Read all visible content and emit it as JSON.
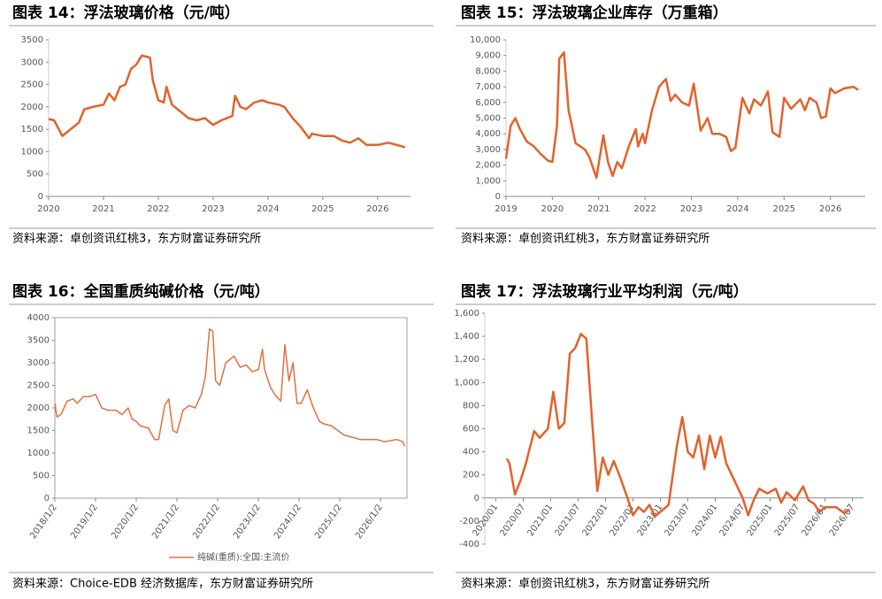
{
  "chart_data": [
    {
      "type": "line",
      "title": "图表 14：浮法玻璃价格（元/吨）",
      "source": "资料来源：卓创资讯红桃3，东方财富证券研究所",
      "color": "#e2622c",
      "x": [
        2020.0,
        2020.1,
        2020.25,
        2020.4,
        2020.55,
        2020.65,
        2020.8,
        2021.0,
        2021.1,
        2021.2,
        2021.3,
        2021.4,
        2021.5,
        2021.6,
        2021.7,
        2021.85,
        2021.9,
        2022.0,
        2022.1,
        2022.15,
        2022.25,
        2022.4,
        2022.55,
        2022.7,
        2022.85,
        2023.0,
        2023.15,
        2023.35,
        2023.4,
        2023.5,
        2023.6,
        2023.75,
        2023.9,
        2024.0,
        2024.2,
        2024.3,
        2024.45,
        2024.6,
        2024.75,
        2024.8,
        2025.0,
        2025.2,
        2025.35,
        2025.5,
        2025.65,
        2025.8,
        2026.0,
        2026.2,
        2026.35,
        2026.5
      ],
      "values": [
        1730,
        1700,
        1350,
        1500,
        1650,
        1950,
        2000,
        2050,
        2300,
        2150,
        2450,
        2500,
        2850,
        2950,
        3150,
        3100,
        2600,
        2150,
        2100,
        2450,
        2050,
        1900,
        1750,
        1700,
        1750,
        1600,
        1700,
        1800,
        2250,
        2000,
        1950,
        2100,
        2150,
        2100,
        2050,
        2000,
        1750,
        1550,
        1300,
        1400,
        1350,
        1350,
        1250,
        1200,
        1300,
        1150,
        1150,
        1200,
        1150,
        1100
      ],
      "xlim": [
        2020,
        2026.6
      ],
      "xticks": [
        2020,
        2021,
        2022,
        2023,
        2024,
        2025,
        2026
      ],
      "ylim": [
        0,
        3500
      ],
      "yticks": [
        0,
        500,
        1000,
        1500,
        2000,
        2500,
        3000,
        3500
      ]
    },
    {
      "type": "line",
      "title": "图表 15：浮法玻璃企业库存（万重箱）",
      "source": "资料来源：卓创资讯红桃3，东方财富证券研究所",
      "color": "#e2622c",
      "x": [
        2019.0,
        2019.1,
        2019.2,
        2019.3,
        2019.45,
        2019.6,
        2019.75,
        2019.9,
        2020.0,
        2020.1,
        2020.15,
        2020.25,
        2020.35,
        2020.5,
        2020.6,
        2020.7,
        2020.8,
        2020.95,
        2021.1,
        2021.2,
        2021.3,
        2021.4,
        2021.5,
        2021.65,
        2021.8,
        2021.85,
        2021.95,
        2022.0,
        2022.15,
        2022.3,
        2022.45,
        2022.55,
        2022.65,
        2022.8,
        2022.95,
        2023.05,
        2023.2,
        2023.35,
        2023.45,
        2023.6,
        2023.75,
        2023.85,
        2023.95,
        2024.1,
        2024.25,
        2024.35,
        2024.5,
        2024.65,
        2024.75,
        2024.9,
        2025.0,
        2025.15,
        2025.35,
        2025.45,
        2025.55,
        2025.7,
        2025.8,
        2025.9,
        2026.0,
        2026.1,
        2026.3,
        2026.5,
        2026.6
      ],
      "values": [
        2400,
        4500,
        5000,
        4300,
        3500,
        3200,
        2700,
        2300,
        2200,
        4500,
        8800,
        9200,
        5500,
        3400,
        3200,
        3000,
        2500,
        1200,
        3900,
        2200,
        1300,
        2200,
        1800,
        3200,
        4300,
        3200,
        4000,
        3400,
        5500,
        7000,
        7500,
        6100,
        6500,
        6000,
        5800,
        7200,
        4200,
        5000,
        4000,
        4000,
        3800,
        2900,
        3100,
        6300,
        5300,
        6200,
        5800,
        6700,
        4100,
        3800,
        6300,
        5600,
        6200,
        5500,
        6300,
        6000,
        5000,
        5100,
        6900,
        6600,
        6900,
        7000,
        6800
      ],
      "xlim": [
        2019,
        2026.75
      ],
      "xticks": [
        2019,
        2020,
        2021,
        2022,
        2023,
        2024,
        2025,
        2026
      ],
      "ylim": [
        0,
        10000
      ],
      "yticks": [
        0,
        {
          "value": 1000,
          "label": "1,000"
        },
        {
          "value": 2000,
          "label": "2,000"
        },
        {
          "value": 3000,
          "label": "3,000"
        },
        {
          "value": 4000,
          "label": "4,000"
        },
        {
          "value": 5000,
          "label": "5,000"
        },
        {
          "value": 6000,
          "label": "6,000"
        },
        {
          "value": 7000,
          "label": "7,000"
        },
        {
          "value": 8000,
          "label": "8,000"
        },
        {
          "value": 9000,
          "label": "9,000"
        },
        {
          "value": 10000,
          "label": "10,000"
        }
      ]
    },
    {
      "type": "line",
      "title": "图表 16：全国重质纯碱价格（元/吨）",
      "source": "资料来源：Choice-EDB 经济数据库，东方财富证券研究所",
      "x": [
        2018.0,
        2018.05,
        2018.15,
        2018.3,
        2018.45,
        2018.55,
        2018.7,
        2018.85,
        2019.0,
        2019.15,
        2019.3,
        2019.5,
        2019.65,
        2019.8,
        2019.9,
        2020.0,
        2020.1,
        2020.3,
        2020.45,
        2020.55,
        2020.7,
        2020.8,
        2020.9,
        2021.0,
        2021.15,
        2021.3,
        2021.45,
        2021.6,
        2021.7,
        2021.8,
        2021.88,
        2021.95,
        2022.05,
        2022.2,
        2022.4,
        2022.55,
        2022.7,
        2022.85,
        2023.0,
        2023.1,
        2023.15,
        2023.3,
        2023.4,
        2023.55,
        2023.65,
        2023.75,
        2023.85,
        2023.95,
        2024.05,
        2024.2,
        2024.35,
        2024.5,
        2024.6,
        2024.8,
        2024.95,
        2025.1,
        2025.3,
        2025.5,
        2025.7,
        2025.9,
        2026.1,
        2026.4,
        2026.55,
        2026.6
      ],
      "series": [
        {
          "name": "纯碱(重质):全国:主流价",
          "color": "#e0703f",
          "values": [
            2100,
            1800,
            1850,
            2150,
            2200,
            2100,
            2250,
            2250,
            2300,
            2000,
            1950,
            1950,
            1850,
            2000,
            1750,
            1700,
            1600,
            1550,
            1300,
            1300,
            2050,
            2200,
            1500,
            1450,
            1950,
            2050,
            2000,
            2300,
            2700,
            3750,
            3700,
            2600,
            2500,
            3000,
            3150,
            2900,
            2950,
            2800,
            2850,
            3300,
            2850,
            2450,
            2300,
            2150,
            3400,
            2600,
            3000,
            2100,
            2100,
            2400,
            2000,
            1700,
            1650,
            1600,
            1500,
            1400,
            1350,
            1300,
            1300,
            1300,
            1250,
            1300,
            1250,
            1150
          ]
        }
      ],
      "xlim": [
        2018,
        2026.65
      ],
      "xticks": [
        {
          "value": 2018,
          "label": "2018/1/2"
        },
        {
          "value": 2019,
          "label": "2019/1/2"
        },
        {
          "value": 2020,
          "label": "2020/1/2"
        },
        {
          "value": 2021,
          "label": "2021/1/2"
        },
        {
          "value": 2022,
          "label": "2022/1/2"
        },
        {
          "value": 2023,
          "label": "2023/1/2"
        },
        {
          "value": 2024,
          "label": "2024/1/2"
        },
        {
          "value": 2025,
          "label": "2025/1/2"
        },
        {
          "value": 2026,
          "label": "2026/1/2"
        }
      ],
      "ylim": [
        0,
        4000
      ],
      "yticks": [
        0,
        500,
        1000,
        1500,
        2000,
        2500,
        3000,
        3500,
        4000
      ]
    },
    {
      "type": "line",
      "title": "图表 17：浮法玻璃行业平均利润（元/吨）",
      "source": "资料来源：卓创资讯红桃3，东方财富证券研究所",
      "color": "#e2622c",
      "x": [
        2020.2,
        2020.25,
        2020.35,
        2020.45,
        2020.55,
        2020.7,
        2020.8,
        2020.95,
        2021.05,
        2021.15,
        2021.25,
        2021.35,
        2021.45,
        2021.55,
        2021.65,
        2021.75,
        2021.85,
        2021.95,
        2022.05,
        2022.15,
        2022.25,
        2022.4,
        2022.5,
        2022.6,
        2022.7,
        2022.8,
        2022.9,
        2023.0,
        2023.15,
        2023.3,
        2023.4,
        2023.5,
        2023.6,
        2023.7,
        2023.8,
        2023.9,
        2024.0,
        2024.1,
        2024.2,
        2024.35,
        2024.5,
        2024.6,
        2024.7,
        2024.8,
        2024.95,
        2025.1,
        2025.2,
        2025.3,
        2025.45,
        2025.6,
        2025.7,
        2025.8,
        2025.9,
        2026.0,
        2026.2,
        2026.35,
        2026.45
      ],
      "values": [
        340,
        300,
        30,
        150,
        300,
        580,
        520,
        600,
        920,
        600,
        650,
        1250,
        1300,
        1420,
        1380,
        700,
        60,
        350,
        200,
        320,
        200,
        0,
        -150,
        -80,
        -120,
        -60,
        -160,
        -120,
        -60,
        450,
        700,
        400,
        350,
        540,
        250,
        540,
        350,
        530,
        300,
        150,
        0,
        -150,
        -20,
        80,
        40,
        80,
        -40,
        50,
        -20,
        100,
        -20,
        -50,
        -120,
        -80,
        -80,
        -130,
        -100
      ],
      "xlim": [
        2019.8,
        2026.7
      ],
      "xticks": [
        {
          "value": 2020,
          "label": "2020/01"
        },
        {
          "value": 2020.5,
          "label": "2020/07"
        },
        {
          "value": 2021,
          "label": "2021/01"
        },
        {
          "value": 2021.5,
          "label": "2021/07"
        },
        {
          "value": 2022,
          "label": "2022/01"
        },
        {
          "value": 2022.5,
          "label": "2022/07"
        },
        {
          "value": 2023,
          "label": "2023/01"
        },
        {
          "value": 2023.5,
          "label": "2023/07"
        },
        {
          "value": 2024,
          "label": "2024/01"
        },
        {
          "value": 2024.5,
          "label": "2024/07"
        },
        {
          "value": 2025,
          "label": "2025/01"
        },
        {
          "value": 2025.5,
          "label": "2025/07"
        },
        {
          "value": 2026,
          "label": "2026/01"
        },
        {
          "value": 2026.5,
          "label": "2026/07"
        }
      ],
      "ylim": [
        -400,
        1600
      ],
      "yticks": [
        -400,
        -200,
        0,
        200,
        400,
        600,
        800,
        {
          "value": 1000,
          "label": "1,000"
        },
        {
          "value": 1200,
          "label": "1,200"
        },
        {
          "value": 1400,
          "label": "1,400"
        },
        {
          "value": 1600,
          "label": "1,600"
        }
      ]
    }
  ]
}
